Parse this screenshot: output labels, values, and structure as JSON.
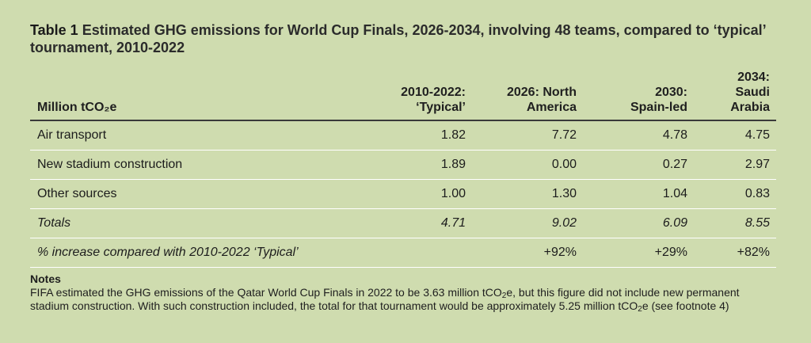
{
  "title": {
    "lead": "Table 1",
    "text": " Estimated GHG emissions for World Cup Finals, 2026-2034, involving 48 teams, compared to ‘typical’ tournament, 2010-2022"
  },
  "table": {
    "unit_header": "Million tCO₂e",
    "columns": [
      {
        "line1": "2010-2022:",
        "line2": "‘Typical’"
      },
      {
        "line1": "2026: North",
        "line2": "America"
      },
      {
        "line1": "2030:",
        "line2": "Spain-led"
      },
      {
        "line1": "2034:",
        "line2": "Saudi Arabia"
      }
    ],
    "rows": [
      {
        "label": "Air transport",
        "values": [
          "1.82",
          "7.72",
          "4.78",
          "4.75"
        ]
      },
      {
        "label": "New stadium construction",
        "values": [
          "1.89",
          "0.00",
          "0.27",
          "2.97"
        ]
      },
      {
        "label": "Other sources",
        "values": [
          "1.00",
          "1.30",
          "1.04",
          "0.83"
        ]
      },
      {
        "label": "Totals",
        "values": [
          "4.71",
          "9.02",
          "6.09",
          "8.55"
        ]
      },
      {
        "label": "% increase compared with 2010-2022 ‘Typical’",
        "values": [
          "",
          "+92%",
          "+29%",
          "+82%"
        ]
      }
    ]
  },
  "notes": {
    "heading": "Notes",
    "part1": "FIFA estimated the GHG emissions of the Qatar World Cup Finals in 2022 to be 3.63 million tCO",
    "sub1": "2",
    "part2": "e, but this figure did not include new permanent stadium construction. With such construction included, the total for that tournament would be approximately 5.25 million tCO",
    "sub2": "2",
    "part3": "e (see footnote 4)"
  }
}
